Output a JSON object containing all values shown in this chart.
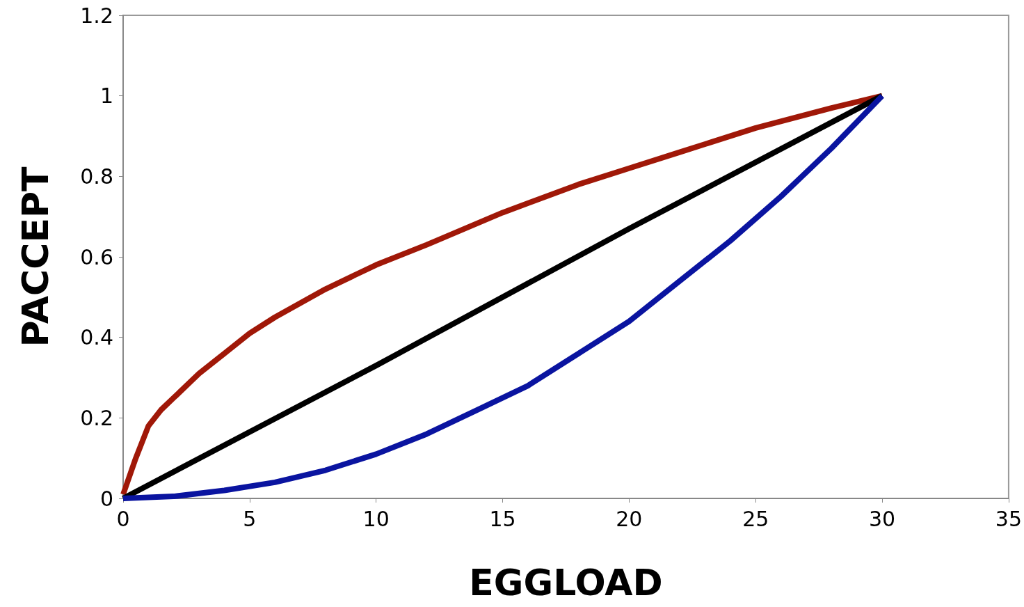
{
  "chart_data": {
    "type": "line",
    "xlabel": "EGGLOAD",
    "ylabel": "PACCEPT",
    "xlim": [
      0,
      35
    ],
    "xticks": [
      0,
      5,
      10,
      15,
      20,
      25,
      30,
      35
    ],
    "ylim": [
      0,
      1.2
    ],
    "yticks": [
      0,
      0.2,
      0.4,
      0.6,
      0.8,
      1,
      1.2
    ],
    "grid": false,
    "marker": "none",
    "line_style": "solid",
    "series": [
      {
        "color": "#a01808",
        "x": [
          0,
          0.5,
          1,
          1.5,
          2,
          3,
          4,
          5,
          6,
          8,
          10,
          12,
          15,
          18,
          20,
          22,
          25,
          28,
          30
        ],
        "values": [
          0.01,
          0.1,
          0.18,
          0.22,
          0.25,
          0.31,
          0.36,
          0.41,
          0.45,
          0.52,
          0.58,
          0.63,
          0.71,
          0.78,
          0.82,
          0.86,
          0.92,
          0.97,
          1
        ]
      },
      {
        "color": "#000000",
        "x": [
          0,
          10,
          20,
          30
        ],
        "values": [
          0,
          0.33,
          0.67,
          1
        ]
      },
      {
        "color": "#0a14a0",
        "x": [
          0,
          2,
          4,
          6,
          8,
          10,
          12,
          14,
          16,
          18,
          20,
          22,
          24,
          26,
          28,
          30
        ],
        "values": [
          0,
          0.005,
          0.02,
          0.04,
          0.07,
          0.11,
          0.16,
          0.22,
          0.28,
          0.36,
          0.44,
          0.54,
          0.64,
          0.75,
          0.87,
          1
        ]
      }
    ]
  }
}
